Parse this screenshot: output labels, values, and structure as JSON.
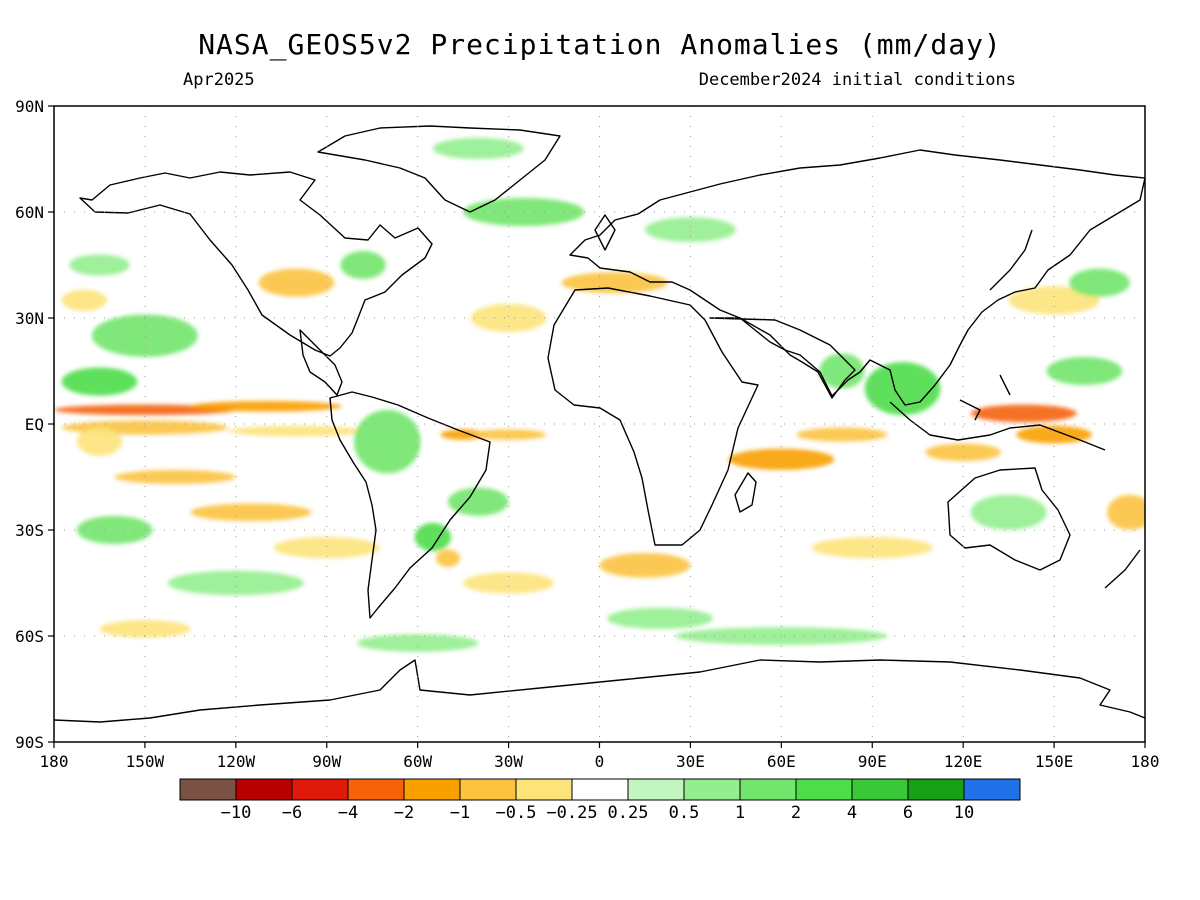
{
  "title": "NASA_GEOS5v2 Precipitation Anomalies (mm/day)",
  "subtitle_left": "Apr2025",
  "subtitle_right": "December2024 initial conditions",
  "lat_ticks": [
    "90N",
    "60N",
    "30N",
    "EQ",
    "30S",
    "60S",
    "90S"
  ],
  "lon_ticks": [
    "180",
    "150W",
    "120W",
    "90W",
    "60W",
    "30W",
    "0",
    "30E",
    "60E",
    "90E",
    "120E",
    "150E",
    "180"
  ],
  "colorbar": {
    "colors": [
      "#7a5145",
      "#b80000",
      "#e01a0a",
      "#f5620a",
      "#f8a000",
      "#fbc340",
      "#fde37a",
      "#ffffff",
      "#c2f5c0",
      "#94ee8f",
      "#72e66c",
      "#4edd4a",
      "#38c838",
      "#15a015",
      "#2070e8"
    ],
    "labels": [
      "-10",
      "-6",
      "-4",
      "-2",
      "-1",
      "-0.5",
      "-0.25",
      "0.25",
      "0.5",
      "1",
      "2",
      "4",
      "6",
      "10"
    ]
  },
  "map_data": {
    "field": "precipitation anomaly",
    "units": "mm/day",
    "lon_range": [
      -180,
      180
    ],
    "lat_range": [
      -90,
      90
    ],
    "blobs": [
      {
        "lon": -150,
        "lat": 4,
        "w": 60,
        "h": 3,
        "v": -4
      },
      {
        "lon": -110,
        "lat": 5,
        "w": 50,
        "h": 3,
        "v": -2
      },
      {
        "lon": -150,
        "lat": -1,
        "w": 55,
        "h": 4,
        "v": -1
      },
      {
        "lon": -100,
        "lat": -2,
        "w": 45,
        "h": 3,
        "v": -0.5
      },
      {
        "lon": -140,
        "lat": -15,
        "w": 40,
        "h": 4,
        "v": -1
      },
      {
        "lon": -115,
        "lat": -25,
        "w": 40,
        "h": 5,
        "v": -1
      },
      {
        "lon": -90,
        "lat": -35,
        "w": 35,
        "h": 6,
        "v": -0.5
      },
      {
        "lon": -165,
        "lat": -5,
        "w": 15,
        "h": 8,
        "v": -0.5
      },
      {
        "lon": -165,
        "lat": 12,
        "w": 25,
        "h": 8,
        "v": 2
      },
      {
        "lon": -150,
        "lat": 25,
        "w": 35,
        "h": 12,
        "v": 1
      },
      {
        "lon": -160,
        "lat": -30,
        "w": 25,
        "h": 8,
        "v": 1
      },
      {
        "lon": -120,
        "lat": -45,
        "w": 45,
        "h": 7,
        "v": 0.5
      },
      {
        "lon": -100,
        "lat": 40,
        "w": 25,
        "h": 8,
        "v": -1
      },
      {
        "lon": -78,
        "lat": 45,
        "w": 15,
        "h": 8,
        "v": 1
      },
      {
        "lon": -70,
        "lat": -5,
        "w": 22,
        "h": 18,
        "v": 1
      },
      {
        "lon": -45,
        "lat": -3,
        "w": 15,
        "h": 3,
        "v": -2
      },
      {
        "lon": -30,
        "lat": -3,
        "w": 25,
        "h": 3,
        "v": -1
      },
      {
        "lon": -55,
        "lat": -32,
        "w": 12,
        "h": 8,
        "v": 2
      },
      {
        "lon": -50,
        "lat": -38,
        "w": 8,
        "h": 5,
        "v": -1
      },
      {
        "lon": -30,
        "lat": -45,
        "w": 30,
        "h": 6,
        "v": -0.5
      },
      {
        "lon": -40,
        "lat": -22,
        "w": 20,
        "h": 8,
        "v": 1
      },
      {
        "lon": -25,
        "lat": 60,
        "w": 40,
        "h": 8,
        "v": 1
      },
      {
        "lon": -40,
        "lat": 78,
        "w": 30,
        "h": 6,
        "v": 0.5
      },
      {
        "lon": -30,
        "lat": 30,
        "w": 25,
        "h": 8,
        "v": -0.5
      },
      {
        "lon": 5,
        "lat": 40,
        "w": 35,
        "h": 6,
        "v": -1
      },
      {
        "lon": 30,
        "lat": 55,
        "w": 30,
        "h": 7,
        "v": 0.5
      },
      {
        "lon": 15,
        "lat": -40,
        "w": 30,
        "h": 7,
        "v": -1
      },
      {
        "lon": 20,
        "lat": -55,
        "w": 35,
        "h": 6,
        "v": 0.5
      },
      {
        "lon": 60,
        "lat": -10,
        "w": 35,
        "h": 6,
        "v": -2
      },
      {
        "lon": 80,
        "lat": -3,
        "w": 30,
        "h": 4,
        "v": -1
      },
      {
        "lon": 90,
        "lat": -35,
        "w": 40,
        "h": 6,
        "v": -0.5
      },
      {
        "lon": 100,
        "lat": 10,
        "w": 25,
        "h": 15,
        "v": 2
      },
      {
        "lon": 80,
        "lat": 15,
        "w": 15,
        "h": 10,
        "v": 1
      },
      {
        "lon": 140,
        "lat": 3,
        "w": 35,
        "h": 5,
        "v": -4
      },
      {
        "lon": 150,
        "lat": -3,
        "w": 25,
        "h": 5,
        "v": -2
      },
      {
        "lon": 120,
        "lat": -8,
        "w": 25,
        "h": 5,
        "v": -1
      },
      {
        "lon": 160,
        "lat": 15,
        "w": 25,
        "h": 8,
        "v": 1
      },
      {
        "lon": 150,
        "lat": 35,
        "w": 30,
        "h": 8,
        "v": -0.5
      },
      {
        "lon": 165,
        "lat": 40,
        "w": 20,
        "h": 8,
        "v": 1
      },
      {
        "lon": 135,
        "lat": -25,
        "w": 25,
        "h": 10,
        "v": 0.5
      },
      {
        "lon": 175,
        "lat": -25,
        "w": 15,
        "h": 10,
        "v": -1
      },
      {
        "lon": 60,
        "lat": -60,
        "w": 70,
        "h": 5,
        "v": 0.5
      },
      {
        "lon": -60,
        "lat": -62,
        "w": 40,
        "h": 5,
        "v": 0.5
      },
      {
        "lon": -150,
        "lat": -58,
        "w": 30,
        "h": 5,
        "v": -0.5
      },
      {
        "lon": -165,
        "lat": 45,
        "w": 20,
        "h": 6,
        "v": 0.5
      },
      {
        "lon": -170,
        "lat": 35,
        "w": 15,
        "h": 6,
        "v": -0.5
      }
    ]
  }
}
